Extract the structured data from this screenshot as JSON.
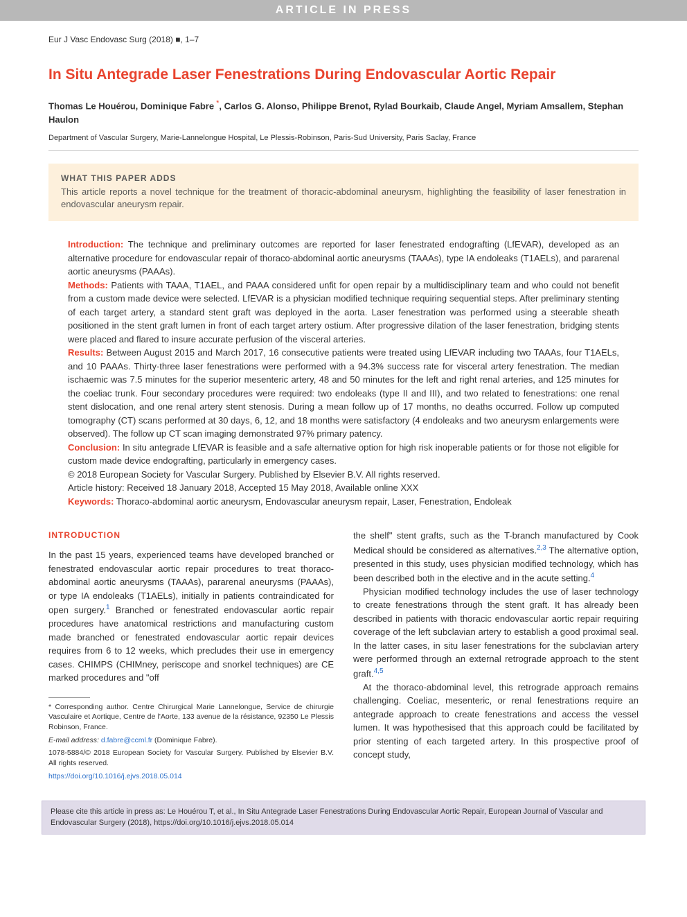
{
  "pressBanner": "ARTICLE IN PRESS",
  "journalRef": "Eur J Vasc Endovasc Surg (2018) ■, 1–7",
  "title": "In Situ Antegrade Laser Fenestrations During Endovascular Aortic Repair",
  "authors": "Thomas Le Houérou, Dominique Fabre",
  "authorsRest": ", Carlos G. Alonso, Philippe Brenot, Rylad Bourkaib, Claude Angel, Myriam Amsallem, Stephan Haulon",
  "corrMark": " *",
  "affiliation": "Department of Vascular Surgery, Marie-Lannelongue Hospital, Le Plessis-Robinson, Paris-Sud University, Paris Saclay, France",
  "highlightTitle": "WHAT THIS PAPER ADDS",
  "highlightText": "This article reports a novel technique for the treatment of thoracic-abdominal aneurysm, highlighting the feasibility of laser fenestration in endovascular aneurysm repair.",
  "abstract": {
    "introLabel": "Introduction:",
    "introText": " The technique and preliminary outcomes are reported for laser fenestrated endografting (LfEVAR), developed as an alternative procedure for endovascular repair of thoraco-abdominal aortic aneurysms (TAAAs), type IA endoleaks (T1AELs), and pararenal aortic aneurysms (PAAAs).",
    "methodsLabel": "Methods:",
    "methodsText": " Patients with TAAA, T1AEL, and PAAA considered unfit for open repair by a multidisciplinary team and who could not benefit from a custom made device were selected. LfEVAR is a physician modified technique requiring sequential steps. After preliminary stenting of each target artery, a standard stent graft was deployed in the aorta. Laser fenestration was performed using a steerable sheath positioned in the stent graft lumen in front of each target artery ostium. After progressive dilation of the laser fenestration, bridging stents were placed and flared to insure accurate perfusion of the visceral arteries.",
    "resultsLabel": "Results:",
    "resultsText": " Between August 2015 and March 2017, 16 consecutive patients were treated using LfEVAR including two TAAAs, four T1AELs, and 10 PAAAs. Thirty-three laser fenestrations were performed with a 94.3% success rate for visceral artery fenestration. The median ischaemic was 7.5 minutes for the superior mesenteric artery, 48 and 50 minutes for the left and right renal arteries, and 125 minutes for the coeliac trunk. Four secondary procedures were required: two endoleaks (type II and III), and two related to fenestrations: one renal stent dislocation, and one renal artery stent stenosis. During a mean follow up of 17 months, no deaths occurred. Follow up computed tomography (CT) scans performed at 30 days, 6, 12, and 18 months were satisfactory (4 endoleaks and two aneurysm enlargements were observed). The follow up CT scan imaging demonstrated 97% primary patency.",
    "conclusionLabel": "Conclusion:",
    "conclusionText": " In situ antegrade LfEVAR is feasible and a safe alternative option for high risk inoperable patients or for those not eligible for custom made device endografting, particularly in emergency cases.",
    "copyright": "© 2018 European Society for Vascular Surgery. Published by Elsevier B.V. All rights reserved.",
    "history": "Article history: Received 18 January 2018, Accepted 15 May 2018, Available online XXX",
    "keywordsLabel": "Keywords:",
    "keywordsText": " Thoraco-abdominal aortic aneurysm, Endovascular aneurysm repair, Laser, Fenestration, Endoleak"
  },
  "introHeading": "INTRODUCTION",
  "col1": {
    "p1a": "In the past 15 years, experienced teams have developed branched or fenestrated endovascular aortic repair procedures to treat thoraco-abdominal aortic aneurysms (TAAAs), pararenal aneurysms (PAAAs), or type IA endoleaks (T1AELs), initially in patients contraindicated for open surgery.",
    "ref1": "1",
    "p1b": " Branched or fenestrated endovascular aortic repair procedures have anatomical restrictions and manufacturing custom made branched or fenestrated endovascular aortic repair devices requires from 6 to 12 weeks, which precludes their use in emergency cases. CHIMPS (CHIMney, periscope and snorkel techniques) are CE marked procedures and \"off"
  },
  "col2": {
    "p1a": "the shelf\" stent grafts, such as the T-branch manufactured by Cook Medical should be considered as alternatives.",
    "ref23": "2,3",
    "p1b": " The alternative option, presented in this study, uses physician modified technology, which has been described both in the elective and in the acute setting.",
    "ref4a": "4",
    "p2a": "Physician modified technology includes the use of laser technology to create fenestrations through the stent graft. It has already been described in patients with thoracic endovascular aortic repair requiring coverage of the left subclavian artery to establish a good proximal seal. In the latter cases, in situ laser fenestrations for the subclavian artery were performed through an external retrograde approach to the stent graft.",
    "ref45": "4,5",
    "p3": "At the thoraco-abdominal level, this retrograde approach remains challenging. Coeliac, mesenteric, or renal fenestrations require an antegrade approach to create fenestrations and access the vessel lumen. It was hypothesised that this approach could be facilitated by prior stenting of each targeted artery. In this prospective proof of concept study,"
  },
  "footnotes": {
    "corr": "* Corresponding author. Centre Chirurgical Marie Lannelongue, Service de chirurgie Vasculaire et Aortique, Centre de l'Aorte, 133 avenue de la résistance, 92350 Le Plessis Robinson, France.",
    "emailLabel": "E-mail address:",
    "email": " d.fabre@ccml.fr ",
    "emailSuffix": "(Dominique Fabre).",
    "issn": "1078-5884/© 2018 European Society for Vascular Surgery. Published by Elsevier B.V. All rights reserved.",
    "doi": "https://doi.org/10.1016/j.ejvs.2018.05.014"
  },
  "citation": {
    "text": "Please cite this article in press as: Le Houérou T, et al., In Situ Antegrade Laser Fenestrations During Endovascular Aortic Repair, European Journal of Vascular and Endovascular Surgery (2018), https://doi.org/10.1016/j.ejvs.2018.05.014"
  },
  "colors": {
    "accent": "#e8432e",
    "bannerBg": "#b8b8b8",
    "highlightBg": "#fdf0dc",
    "citationBg": "#e0dbe9",
    "link": "#2a6fc9"
  }
}
